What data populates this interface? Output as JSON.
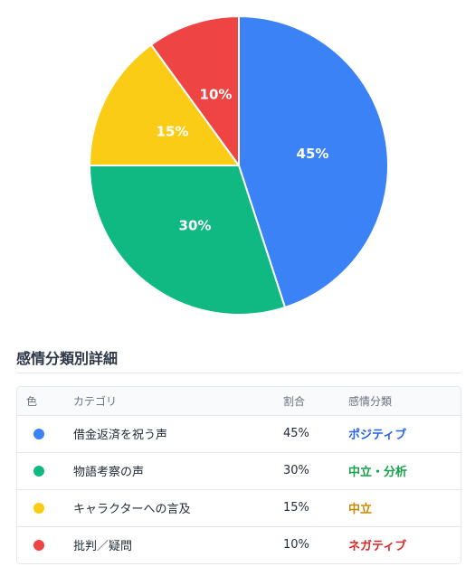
{
  "chart_data": {
    "type": "pie",
    "slices": [
      {
        "label": "借金返済を祝う声",
        "value": 45,
        "color": "#3b82f6",
        "value_label": "45%"
      },
      {
        "label": "物語考察の声",
        "value": 30,
        "color": "#10b981",
        "value_label": "30%"
      },
      {
        "label": "キャラクターへの言及",
        "value": 15,
        "color": "#facc15",
        "value_label": "15%"
      },
      {
        "label": "批判／疑問",
        "value": 10,
        "color": "#ef4444",
        "value_label": "10%"
      }
    ]
  },
  "section": {
    "title": "感情分類別詳細"
  },
  "table": {
    "headers": {
      "color": "色",
      "category": "カテゴリ",
      "ratio": "割合",
      "sentiment": "感情分類"
    },
    "rows": [
      {
        "color": "#3b82f6",
        "category": "借金返済を祝う声",
        "ratio": "45%",
        "sentiment": "ポジティブ",
        "sentiment_color": "#2563eb"
      },
      {
        "color": "#10b981",
        "category": "物語考察の声",
        "ratio": "30%",
        "sentiment": "中立・分析",
        "sentiment_color": "#16a34a"
      },
      {
        "color": "#facc15",
        "category": "キャラクターへの言及",
        "ratio": "15%",
        "sentiment": "中立",
        "sentiment_color": "#ca8a04"
      },
      {
        "color": "#ef4444",
        "category": "批判／疑問",
        "ratio": "10%",
        "sentiment": "ネガティブ",
        "sentiment_color": "#dc2626"
      }
    ]
  }
}
